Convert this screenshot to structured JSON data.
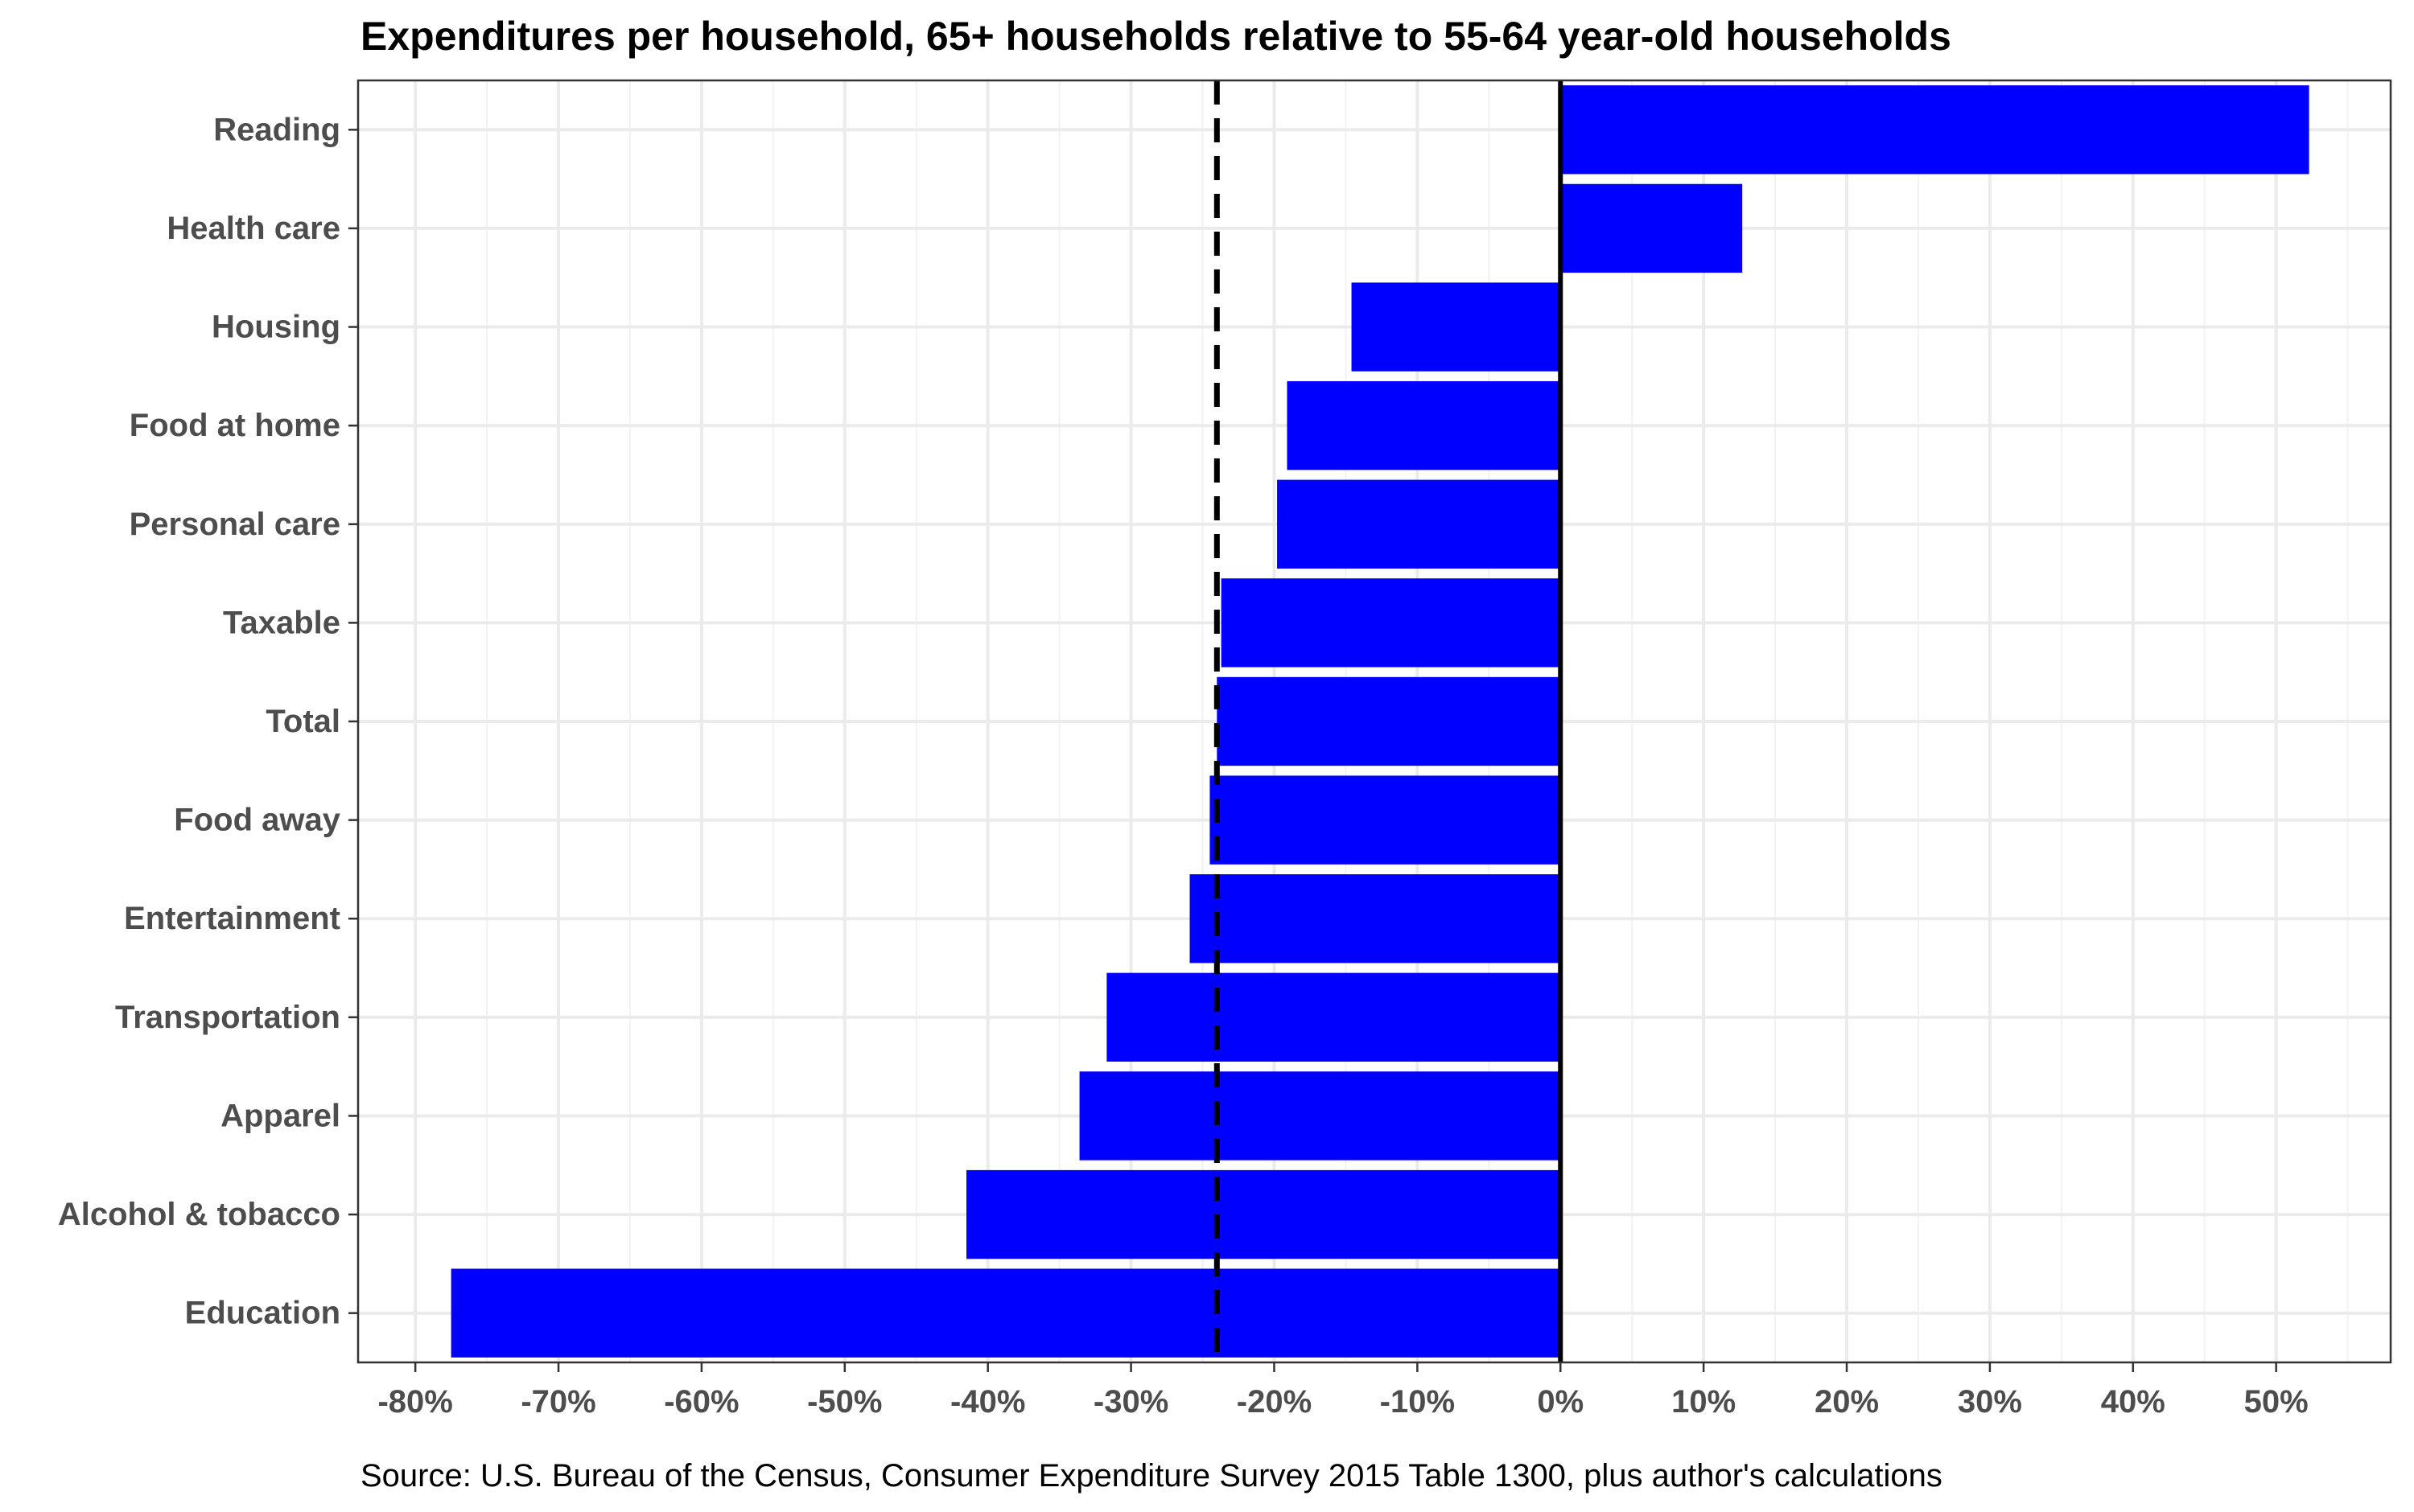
{
  "chart_data": {
    "type": "bar",
    "orientation": "horizontal",
    "title": "Expenditures per household, 65+ households relative to 55-64 year-old households",
    "caption": "Source: U.S. Bureau of the Census, Consumer Expenditure Survey 2015 Table 1300, plus author's calculations",
    "xlabel": "",
    "ylabel": "",
    "categories": [
      "Reading",
      "Health care",
      "Housing",
      "Food at home",
      "Personal care",
      "Taxable",
      "Total",
      "Food away",
      "Entertainment",
      "Transportation",
      "Apparel",
      "Alcohol & tobacco",
      "Education"
    ],
    "values": [
      52.3,
      12.7,
      -14.6,
      -19.1,
      -19.8,
      -23.7,
      -24.0,
      -24.5,
      -25.9,
      -31.7,
      -33.6,
      -41.5,
      -77.5
    ],
    "value_unit": "%",
    "reference_line": {
      "value": -24.0,
      "style": "dashed",
      "color": "#000000"
    },
    "zero_line": {
      "value": 0,
      "style": "solid",
      "color": "#000000"
    },
    "xlim": [
      -84,
      58
    ],
    "xticks": [
      -80,
      -70,
      -60,
      -50,
      -40,
      -30,
      -20,
      -10,
      0,
      10,
      20,
      30,
      40,
      50
    ],
    "xtick_labels": [
      "-80%",
      "-70%",
      "-60%",
      "-50%",
      "-40%",
      "-30%",
      "-20%",
      "-10%",
      "0%",
      "10%",
      "20%",
      "30%",
      "40%",
      "50%"
    ],
    "grid": true,
    "legend": "none",
    "colors": {
      "bar": "#0000ff",
      "tick_label": "#4d4d4d",
      "title": "#000000",
      "grid": "#ebebeb",
      "grid_minor": "#f2f2f2",
      "panel_border": "#333333"
    }
  }
}
